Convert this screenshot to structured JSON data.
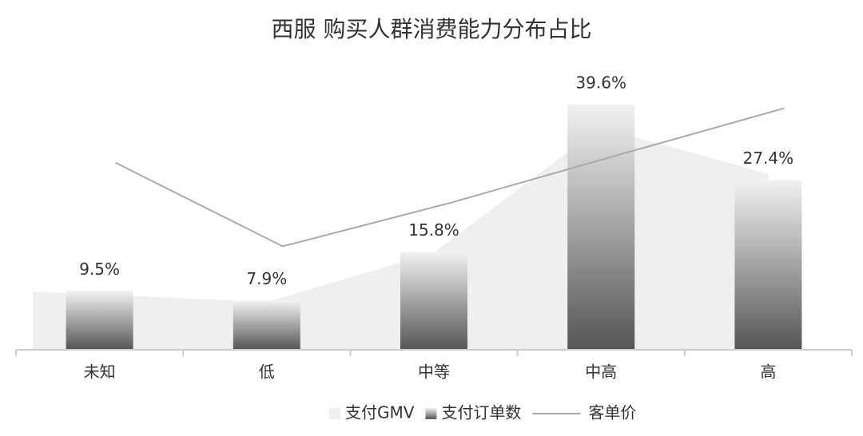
{
  "chart_data": {
    "type": "combo",
    "title": "西服 购买人群消费能力分布占比",
    "categories": [
      "未知",
      "低",
      "中等",
      "中高",
      "高"
    ],
    "series": [
      {
        "name": "支付GMV",
        "kind": "area",
        "color": "#efefef",
        "values": [
          9.4,
          7.7,
          15.7,
          35.9,
          28.4
        ]
      },
      {
        "name": "支付订单数",
        "kind": "bar",
        "color": "#555555",
        "values": [
          9.5,
          7.9,
          15.8,
          39.6,
          27.4
        ],
        "value_labels": [
          "9.5%",
          "7.9%",
          "15.8%",
          "39.6%",
          "27.4%"
        ]
      },
      {
        "name": "客单价",
        "kind": "line",
        "color": "#aaaaaa",
        "values": [
          30.2,
          16.7,
          23.7,
          31.4,
          39.0
        ]
      }
    ],
    "ylim": [
      0,
      45
    ],
    "legend": "bottom"
  }
}
